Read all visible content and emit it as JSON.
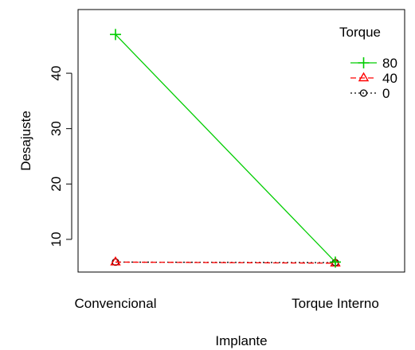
{
  "chart_data": {
    "type": "line",
    "title": "",
    "xlabel": "Implante",
    "ylabel": "Desajuste",
    "categories": [
      "Convencional",
      "Torque Interno"
    ],
    "ylim": [
      4.1,
      51.5
    ],
    "yticks": [
      10,
      20,
      30,
      40
    ],
    "grid": false,
    "legend": {
      "title": "Torque",
      "placement": "top-right"
    },
    "series": [
      {
        "name": "80",
        "values": [
          47.0,
          5.9
        ],
        "color": "#00CD00",
        "marker": "plus",
        "line": "solid"
      },
      {
        "name": "40",
        "values": [
          5.9,
          5.7
        ],
        "color": "#FF0000",
        "marker": "triangle",
        "line": "dashed"
      },
      {
        "name": "0",
        "values": [
          5.9,
          5.8
        ],
        "color": "#000000",
        "marker": "circle",
        "line": "dotted"
      }
    ]
  }
}
